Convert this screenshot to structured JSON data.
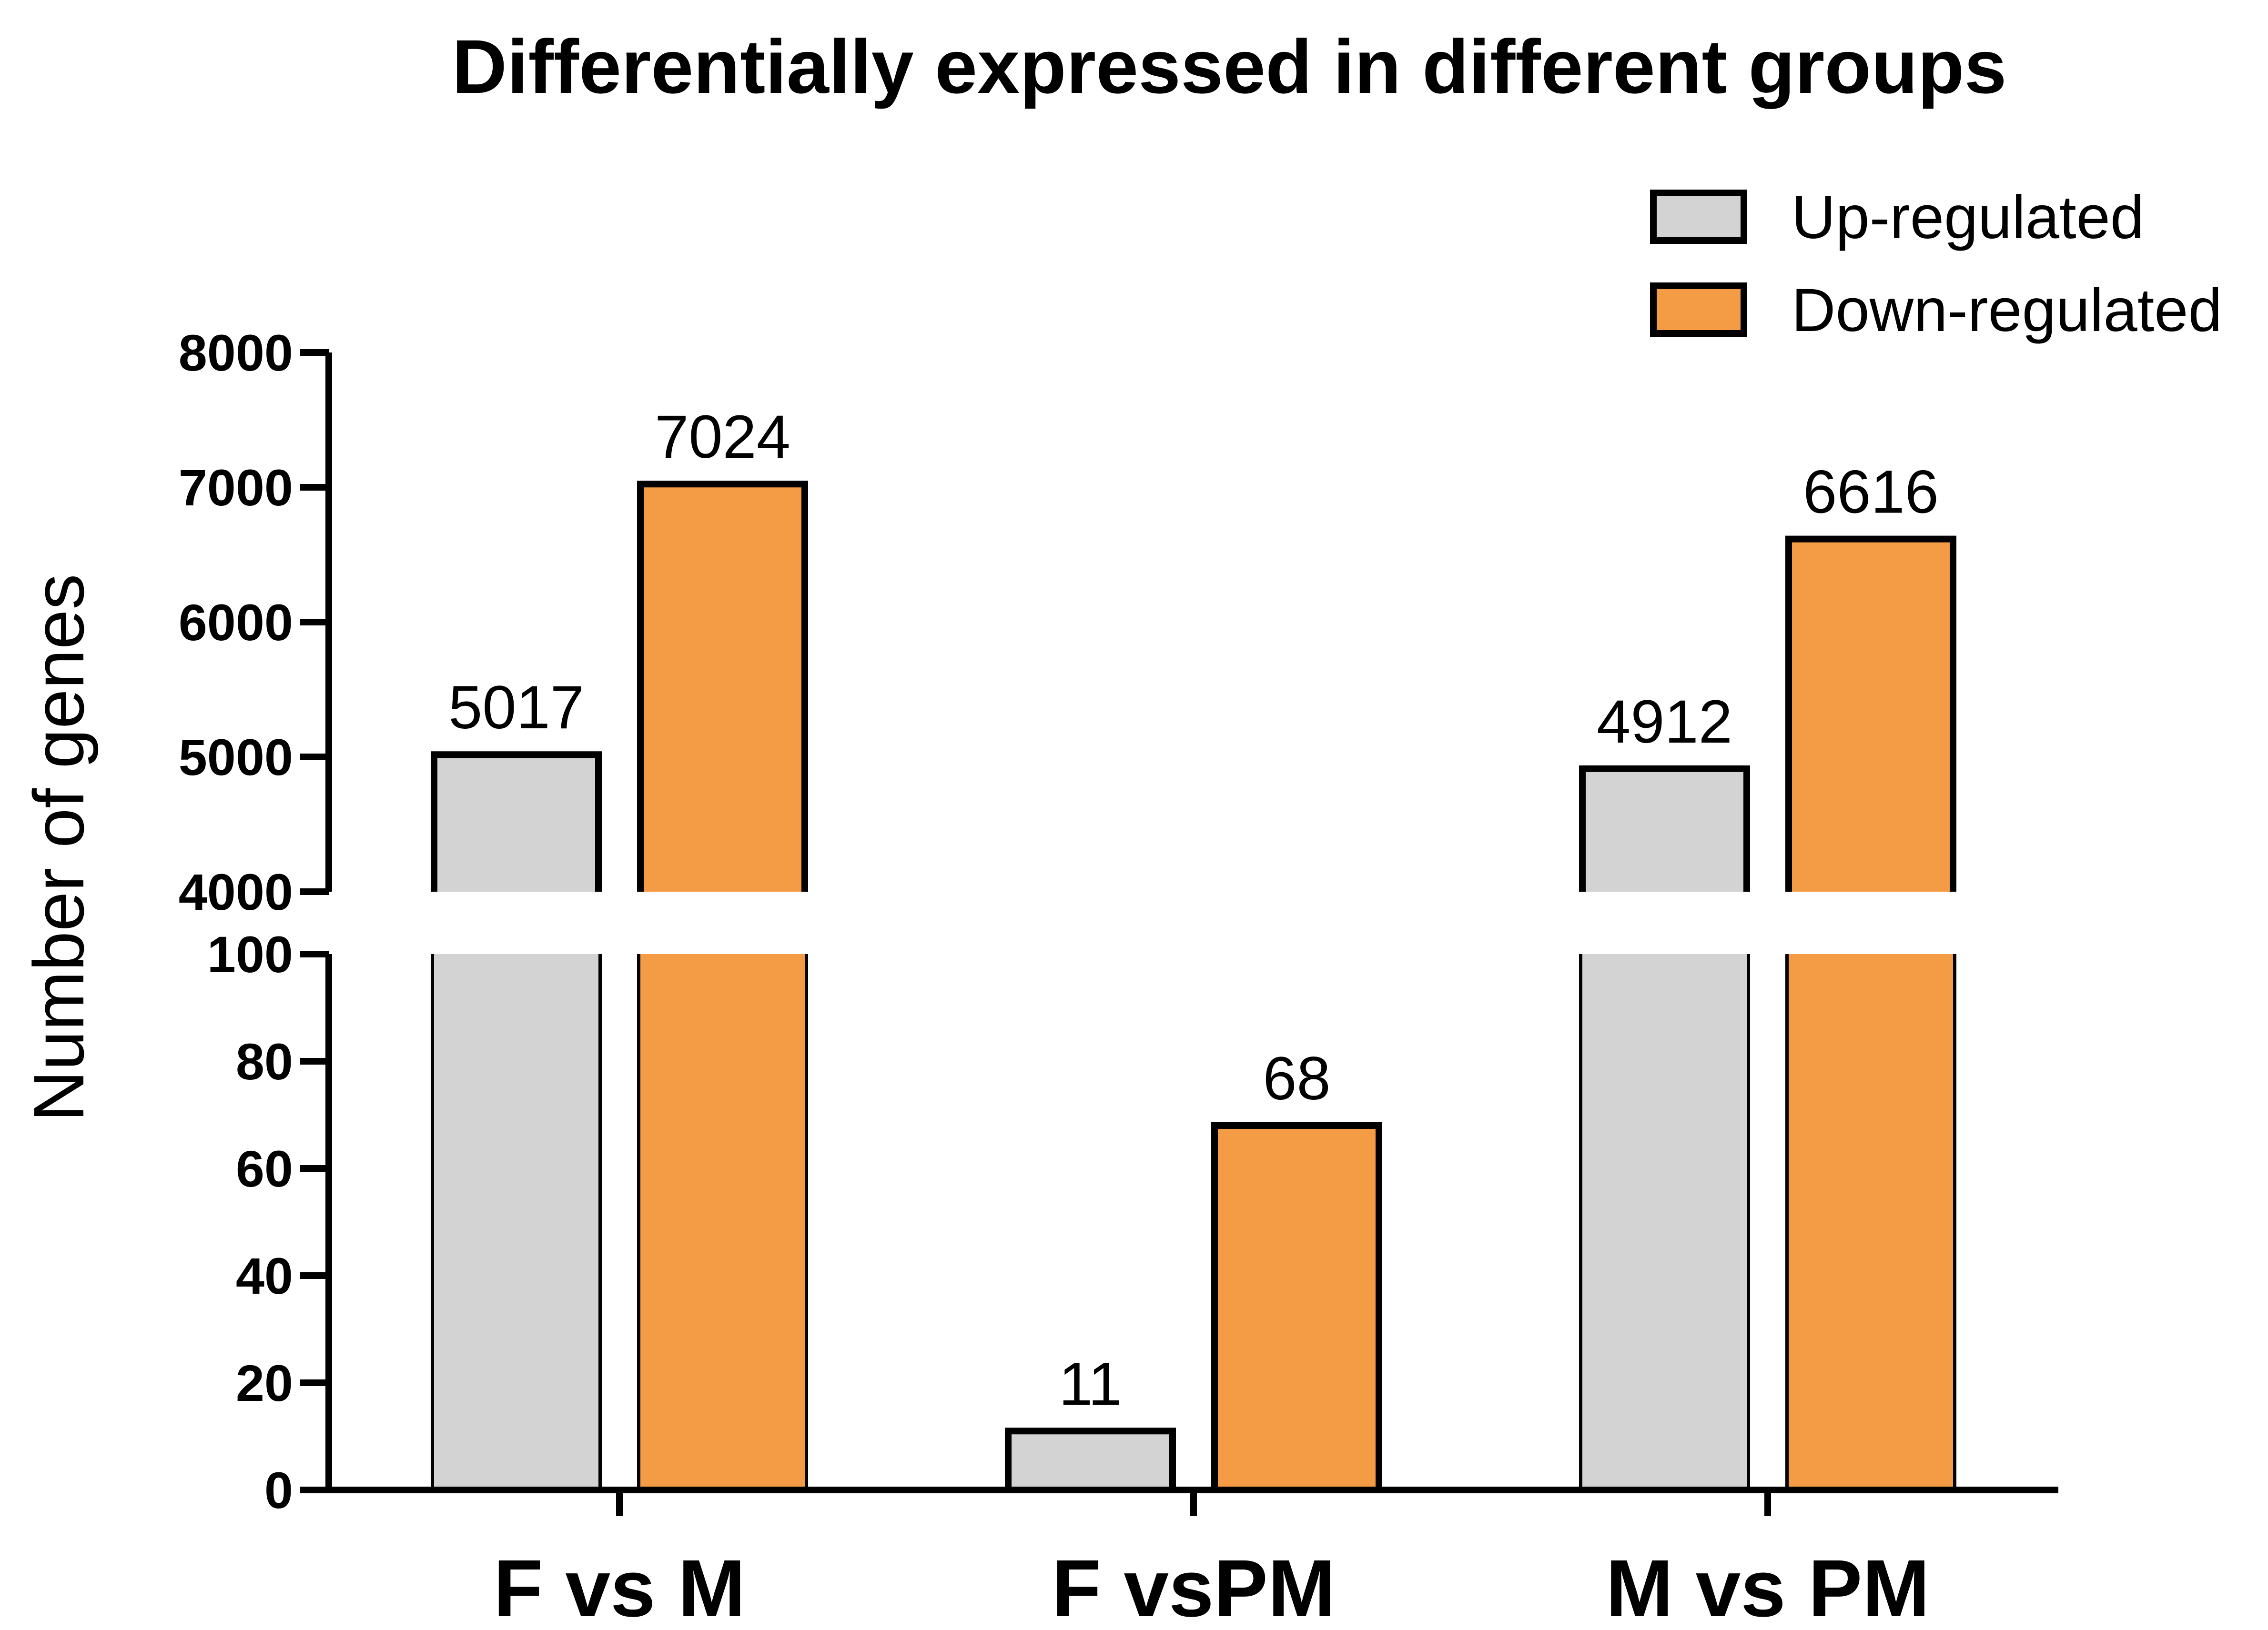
{
  "chart_data": {
    "type": "bar",
    "title": "Differentially expressed in different groups",
    "xlabel": "",
    "ylabel": "Number of genes",
    "categories": [
      "F vs M",
      "F vsPM",
      "M vs PM"
    ],
    "series": [
      {
        "name": "Up-regulated",
        "color": "#d3d3d3",
        "values": [
          5017,
          11,
          4912
        ]
      },
      {
        "name": "Down-regulated",
        "color": "#f39c45",
        "values": [
          7024,
          68,
          6616
        ]
      }
    ],
    "y_axis_broken": true,
    "y_segments": [
      {
        "range": [
          0,
          100
        ],
        "ticks": [
          0,
          20,
          40,
          60,
          80,
          100
        ]
      },
      {
        "range": [
          4000,
          8000
        ],
        "ticks": [
          4000,
          5000,
          6000,
          7000,
          8000
        ]
      }
    ],
    "value_labels": true,
    "grid": false,
    "legend_position": "top-right"
  }
}
